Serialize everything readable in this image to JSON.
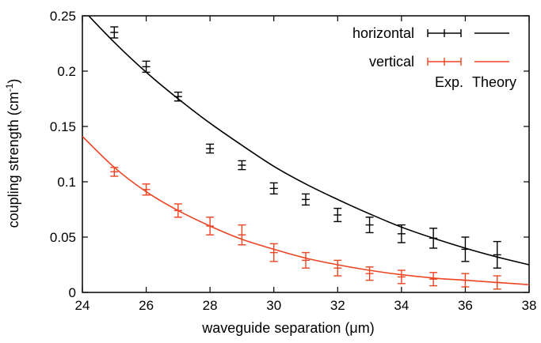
{
  "chart_data": {
    "type": "scatter",
    "xlabel": "waveguide separation (μm)",
    "ylabel_main": "coupling strength (cm",
    "ylabel_sup": "-1",
    "ylabel_close": ")",
    "xlim": [
      24,
      38
    ],
    "ylim": [
      0,
      0.25
    ],
    "x_ticks": [
      24,
      26,
      28,
      30,
      32,
      34,
      36,
      38
    ],
    "x_tick_labels": [
      "24",
      "26",
      "28",
      "30",
      "32",
      "34",
      "36",
      "38"
    ],
    "y_ticks": [
      0,
      0.05,
      0.1,
      0.15,
      0.2,
      0.25
    ],
    "y_tick_labels": [
      "0",
      "0.05",
      "0.1",
      "0.15",
      "0.2",
      "0.25"
    ],
    "grid": false,
    "legend_position": "top-right",
    "legend_column_headers": [
      "Exp.",
      "Theory"
    ],
    "series": [
      {
        "name": "horizontal",
        "color": "#000000",
        "x": [
          25,
          26,
          27,
          28,
          29,
          30,
          31,
          32,
          33,
          34,
          35,
          36,
          37
        ],
        "y": [
          0.235,
          0.204,
          0.177,
          0.13,
          0.115,
          0.094,
          0.084,
          0.07,
          0.061,
          0.053,
          0.049,
          0.039,
          0.034
        ],
        "err": [
          0.005,
          0.005,
          0.004,
          0.004,
          0.004,
          0.005,
          0.005,
          0.006,
          0.007,
          0.008,
          0.009,
          0.011,
          0.012
        ],
        "theory": {
          "x": [
            24,
            25,
            26,
            27,
            28,
            29,
            30,
            31,
            32,
            33,
            34,
            35,
            36,
            37,
            38
          ],
          "y": [
            0.256,
            0.226,
            0.199,
            0.175,
            0.153,
            0.133,
            0.114,
            0.098,
            0.084,
            0.071,
            0.059,
            0.049,
            0.04,
            0.032,
            0.025
          ]
        }
      },
      {
        "name": "vertical",
        "color": "#ee4422",
        "x": [
          25,
          26,
          27,
          28,
          29,
          30,
          31,
          32,
          33,
          34,
          35,
          36,
          37
        ],
        "y": [
          0.109,
          0.093,
          0.074,
          0.06,
          0.052,
          0.036,
          0.029,
          0.022,
          0.017,
          0.014,
          0.012,
          0.011,
          0.009
        ],
        "err": [
          0.004,
          0.005,
          0.006,
          0.008,
          0.009,
          0.008,
          0.007,
          0.007,
          0.006,
          0.006,
          0.006,
          0.006,
          0.006
        ],
        "theory": {
          "x": [
            24,
            25,
            26,
            27,
            28,
            29,
            30,
            31,
            32,
            33,
            34,
            35,
            36,
            37,
            38
          ],
          "y": [
            0.141,
            0.113,
            0.091,
            0.074,
            0.06,
            0.048,
            0.039,
            0.031,
            0.025,
            0.02,
            0.016,
            0.013,
            0.011,
            0.009,
            0.007
          ]
        }
      }
    ]
  }
}
